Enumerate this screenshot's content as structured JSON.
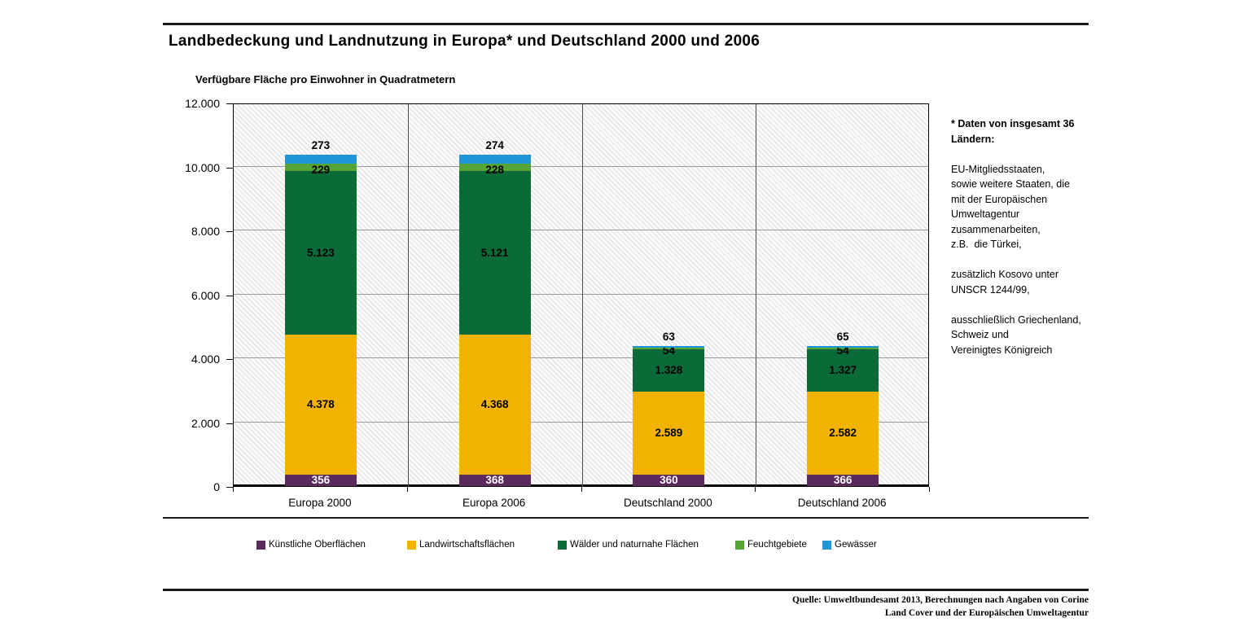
{
  "chart_data": {
    "type": "stacked-bar",
    "title": "Landbedeckung und Landnutzung in Europa* und Deutschland 2000 und 2006",
    "value_axis_title": "Verfügbare Fläche pro Einwohner in Quadratmetern",
    "categories": [
      "Europa 2000",
      "Europa 2006",
      "Deutschland 2000",
      "Deutschland 2006"
    ],
    "series": [
      {
        "name": "Künstliche Oberflächen",
        "color": "#5A2A5C",
        "values": [
          356,
          368,
          360,
          366
        ],
        "labels": [
          "356",
          "368",
          "360",
          "366"
        ],
        "label_color": "#ffffff"
      },
      {
        "name": "Landwirtschaftsflächen",
        "color": "#F1B300",
        "values": [
          4378,
          4368,
          2589,
          2582
        ],
        "labels": [
          "4.378",
          "4.368",
          "2.589",
          "2.582"
        ],
        "label_color": "#000000"
      },
      {
        "name": "Wälder und naturnahe Flächen",
        "color": "#0A6B38",
        "values": [
          5123,
          5121,
          1328,
          1327
        ],
        "labels": [
          "5.123",
          "5.121",
          "1.328",
          "1.327"
        ],
        "label_color": "#000000"
      },
      {
        "name": "Feuchtgebiete",
        "color": "#56A433",
        "values": [
          229,
          228,
          54,
          54
        ],
        "labels": [
          "229",
          "228",
          "54",
          "54"
        ],
        "label_color": "#000000"
      },
      {
        "name": "Gewässer",
        "color": "#2196D6",
        "values": [
          273,
          274,
          63,
          65
        ],
        "labels": [
          "273",
          "274",
          "63",
          "65"
        ],
        "label_color": "#000000",
        "label_position": "above"
      }
    ],
    "ylim": [
      0,
      12000
    ],
    "ytick_step": 2000,
    "ytick_labels": [
      "0",
      "2.000",
      "4.000",
      "6.000",
      "8.000",
      "10.000",
      "12.000"
    ],
    "grid": "horizontal gridlines every 2.000, vertical separators between categories, hatched plot background",
    "legend_position": "bottom"
  },
  "footnote": {
    "heading": [
      "* Daten von insgesamt 36",
      "Ländern:"
    ],
    "lines": [
      "",
      "EU-Mitgliedsstaaten,",
      "sowie weitere Staaten, die",
      "mit der Europäischen",
      "Umweltagentur",
      "zusammenarbeiten,",
      "z.B.  die Türkei,",
      "",
      "zusätzlich Kosovo unter",
      "UNSCR 1244/99,",
      "",
      "ausschließlich Griechenland,",
      "Schweiz und",
      "Vereinigtes Königreich"
    ]
  },
  "source": {
    "lines": [
      "Quelle: Umweltbundesamt 2013, Berechnungen nach Angaben von Corine",
      "Land Cover und der Europäischen Umweltagentur"
    ]
  }
}
